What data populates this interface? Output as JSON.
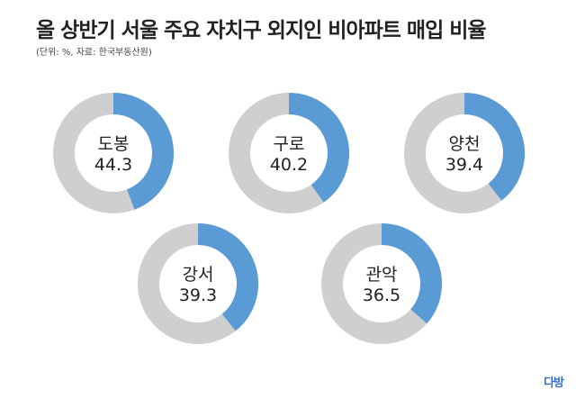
{
  "header": {
    "title": "올 상반기 서울 주요 자치구 외지인 비아파트 매입 비율",
    "subtitle": "(단위: %, 자료: 한국부동산원)"
  },
  "logo": "다방",
  "colors": {
    "value": "#5b9bd5",
    "remainder": "#cfcfcf",
    "text": "#222222"
  },
  "chart_data": {
    "type": "donut",
    "title": "올 상반기 서울 주요 자치구 외지인 비아파트 매입 비율",
    "unit": "%",
    "max": 100,
    "items": [
      {
        "label": "도봉",
        "value": 44.3
      },
      {
        "label": "구로",
        "value": 40.2
      },
      {
        "label": "양천",
        "value": 39.4
      },
      {
        "label": "강서",
        "value": 39.3
      },
      {
        "label": "관악",
        "value": 36.5
      }
    ]
  }
}
